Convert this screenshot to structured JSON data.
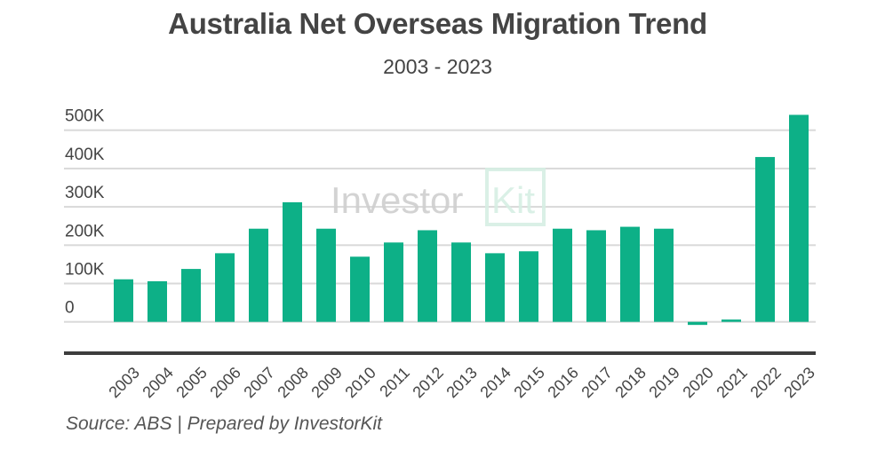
{
  "chart_data": {
    "type": "bar",
    "title": "Australia Net Overseas Migration Trend",
    "subtitle": "2003 - 2023",
    "xlabel": "",
    "ylabel": "",
    "ylim": [
      0,
      500000
    ],
    "yticks": [
      0,
      100000,
      200000,
      300000,
      400000,
      500000
    ],
    "ytick_labels": [
      "0",
      "100K",
      "200K",
      "300K",
      "400K",
      "500K"
    ],
    "grid": true,
    "categories": [
      "2003",
      "2004",
      "2005",
      "2006",
      "2007",
      "2008",
      "2009",
      "2010",
      "2011",
      "2012",
      "2013",
      "2014",
      "2015",
      "2016",
      "2017",
      "2018",
      "2019",
      "2020",
      "2021",
      "2022",
      "2023"
    ],
    "values": [
      111000,
      106000,
      138000,
      179000,
      243000,
      312000,
      243000,
      170000,
      207000,
      239000,
      207000,
      179000,
      184000,
      243000,
      239000,
      248000,
      243000,
      -8000,
      6000,
      430000,
      540000
    ],
    "bar_color": "#0db087",
    "source": "Source: ABS | Prepared by InvestorKit"
  },
  "watermark": {
    "text1": "Investor",
    "text2": "Kit"
  }
}
